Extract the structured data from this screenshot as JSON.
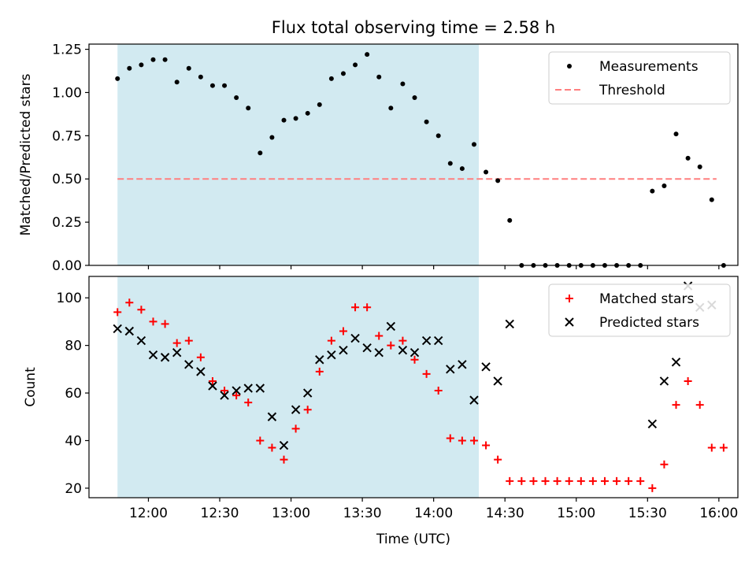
{
  "title": "Flux total observing time = 2.58 h",
  "colors": {
    "shade": "#add8e6",
    "measurement": "#000000",
    "threshold": "#ff7f7f",
    "matched": "#ff0000",
    "predicted": "#000000"
  },
  "chart_data": [
    {
      "type": "scatter",
      "ylabel": "Matched/Predicted stars",
      "xlabel": "",
      "x_ticks": [
        "12:00",
        "12:30",
        "13:00",
        "13:30",
        "14:00",
        "14:30",
        "15:00",
        "15:30",
        "16:00"
      ],
      "x_tick_labels_shown": false,
      "xlim": [
        "11:35",
        "16:08"
      ],
      "ylim": [
        0,
        1.28
      ],
      "y_ticks": [
        "0.00",
        "0.25",
        "0.50",
        "0.75",
        "1.00",
        "1.25"
      ],
      "shaded_interval": [
        "11:47",
        "14:19"
      ],
      "legend": {
        "position": "top-right",
        "entries": [
          "Measurements",
          "Threshold"
        ]
      },
      "threshold": {
        "name": "Threshold",
        "value": 0.5,
        "x_range": [
          "11:47",
          "15:59"
        ],
        "style": "dashed"
      },
      "series": [
        {
          "name": "Measurements",
          "marker": "dot",
          "points": [
            [
              "11:47",
              1.08
            ],
            [
              "11:52",
              1.14
            ],
            [
              "11:57",
              1.16
            ],
            [
              "12:02",
              1.19
            ],
            [
              "12:07",
              1.19
            ],
            [
              "12:12",
              1.06
            ],
            [
              "12:17",
              1.14
            ],
            [
              "12:22",
              1.09
            ],
            [
              "12:27",
              1.04
            ],
            [
              "12:32",
              1.04
            ],
            [
              "12:37",
              0.97
            ],
            [
              "12:42",
              0.91
            ],
            [
              "12:47",
              0.65
            ],
            [
              "12:52",
              0.74
            ],
            [
              "12:57",
              0.84
            ],
            [
              "13:02",
              0.85
            ],
            [
              "13:07",
              0.88
            ],
            [
              "13:12",
              0.93
            ],
            [
              "13:17",
              1.08
            ],
            [
              "13:22",
              1.11
            ],
            [
              "13:27",
              1.16
            ],
            [
              "13:32",
              1.22
            ],
            [
              "13:37",
              1.09
            ],
            [
              "13:42",
              0.91
            ],
            [
              "13:47",
              1.05
            ],
            [
              "13:52",
              0.97
            ],
            [
              "13:57",
              0.83
            ],
            [
              "14:02",
              0.75
            ],
            [
              "14:07",
              0.59
            ],
            [
              "14:12",
              0.56
            ],
            [
              "14:17",
              0.7
            ],
            [
              "14:22",
              0.54
            ],
            [
              "14:27",
              0.49
            ],
            [
              "14:32",
              0.26
            ],
            [
              "14:37",
              0.0
            ],
            [
              "14:42",
              0.0
            ],
            [
              "14:47",
              0.0
            ],
            [
              "14:52",
              0.0
            ],
            [
              "14:57",
              0.0
            ],
            [
              "15:02",
              0.0
            ],
            [
              "15:07",
              0.0
            ],
            [
              "15:12",
              0.0
            ],
            [
              "15:17",
              0.0
            ],
            [
              "15:22",
              0.0
            ],
            [
              "15:27",
              0.0
            ],
            [
              "15:32",
              0.43
            ],
            [
              "15:37",
              0.46
            ],
            [
              "15:42",
              0.76
            ],
            [
              "15:47",
              0.62
            ],
            [
              "15:52",
              0.57
            ],
            [
              "15:57",
              0.38
            ],
            [
              "16:02",
              0.0
            ]
          ]
        }
      ]
    },
    {
      "type": "scatter",
      "ylabel": "Count",
      "xlabel": "Time (UTC)",
      "x_ticks": [
        "12:00",
        "12:30",
        "13:00",
        "13:30",
        "14:00",
        "14:30",
        "15:00",
        "15:30",
        "16:00"
      ],
      "xlim": [
        "11:35",
        "16:08"
      ],
      "ylim": [
        16,
        109
      ],
      "y_ticks": [
        "20",
        "40",
        "60",
        "80",
        "100"
      ],
      "shaded_interval": [
        "11:47",
        "14:19"
      ],
      "legend": {
        "position": "top-right",
        "entries": [
          "Matched stars",
          "Predicted stars"
        ]
      },
      "series": [
        {
          "name": "Matched stars",
          "marker": "plus",
          "points": [
            [
              "11:47",
              94
            ],
            [
              "11:52",
              98
            ],
            [
              "11:57",
              95
            ],
            [
              "12:02",
              90
            ],
            [
              "12:07",
              89
            ],
            [
              "12:12",
              81
            ],
            [
              "12:17",
              82
            ],
            [
              "12:22",
              75
            ],
            [
              "12:27",
              65
            ],
            [
              "12:32",
              61
            ],
            [
              "12:37",
              59
            ],
            [
              "12:42",
              56
            ],
            [
              "12:47",
              40
            ],
            [
              "12:52",
              37
            ],
            [
              "12:57",
              32
            ],
            [
              "13:02",
              45
            ],
            [
              "13:07",
              53
            ],
            [
              "13:12",
              69
            ],
            [
              "13:17",
              82
            ],
            [
              "13:22",
              86
            ],
            [
              "13:27",
              96
            ],
            [
              "13:32",
              96
            ],
            [
              "13:37",
              84
            ],
            [
              "13:42",
              80
            ],
            [
              "13:47",
              82
            ],
            [
              "13:52",
              74
            ],
            [
              "13:57",
              68
            ],
            [
              "14:02",
              61
            ],
            [
              "14:07",
              41
            ],
            [
              "14:12",
              40
            ],
            [
              "14:17",
              40
            ],
            [
              "14:22",
              38
            ],
            [
              "14:27",
              32
            ],
            [
              "14:32",
              23
            ],
            [
              "14:37",
              23
            ],
            [
              "14:42",
              23
            ],
            [
              "14:47",
              23
            ],
            [
              "14:52",
              23
            ],
            [
              "14:57",
              23
            ],
            [
              "15:02",
              23
            ],
            [
              "15:07",
              23
            ],
            [
              "15:12",
              23
            ],
            [
              "15:17",
              23
            ],
            [
              "15:22",
              23
            ],
            [
              "15:27",
              23
            ],
            [
              "15:32",
              20
            ],
            [
              "15:37",
              30
            ],
            [
              "15:42",
              55
            ],
            [
              "15:47",
              65
            ],
            [
              "15:52",
              55
            ],
            [
              "15:57",
              37
            ],
            [
              "16:02",
              37
            ]
          ]
        },
        {
          "name": "Predicted stars",
          "marker": "x",
          "points": [
            [
              "11:47",
              87
            ],
            [
              "11:52",
              86
            ],
            [
              "11:57",
              82
            ],
            [
              "12:02",
              76
            ],
            [
              "12:07",
              75
            ],
            [
              "12:12",
              77
            ],
            [
              "12:17",
              72
            ],
            [
              "12:22",
              69
            ],
            [
              "12:27",
              63
            ],
            [
              "12:32",
              59
            ],
            [
              "12:37",
              61
            ],
            [
              "12:42",
              62
            ],
            [
              "12:47",
              62
            ],
            [
              "12:52",
              50
            ],
            [
              "12:57",
              38
            ],
            [
              "13:02",
              53
            ],
            [
              "13:07",
              60
            ],
            [
              "13:12",
              74
            ],
            [
              "13:17",
              76
            ],
            [
              "13:22",
              78
            ],
            [
              "13:27",
              83
            ],
            [
              "13:32",
              79
            ],
            [
              "13:37",
              77
            ],
            [
              "13:42",
              88
            ],
            [
              "13:47",
              78
            ],
            [
              "13:52",
              77
            ],
            [
              "13:57",
              82
            ],
            [
              "14:02",
              82
            ],
            [
              "14:07",
              70
            ],
            [
              "14:12",
              72
            ],
            [
              "14:17",
              57
            ],
            [
              "14:22",
              71
            ],
            [
              "14:27",
              65
            ],
            [
              "14:32",
              89
            ],
            [
              "15:32",
              47
            ],
            [
              "15:37",
              65
            ],
            [
              "15:42",
              73
            ],
            [
              "15:47",
              105
            ],
            [
              "15:52",
              96
            ],
            [
              "15:57",
              97
            ]
          ]
        }
      ]
    }
  ]
}
